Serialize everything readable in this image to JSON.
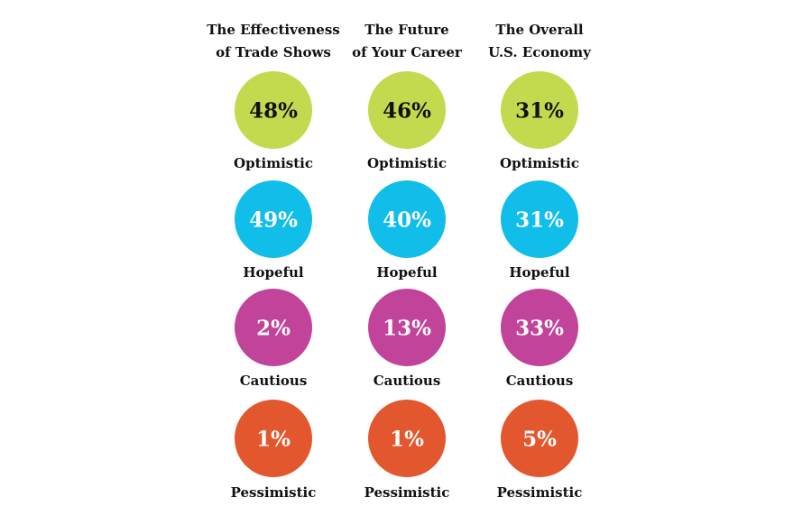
{
  "colors": {
    "optimistic": "#c3d94e",
    "hopeful": "#11bde9",
    "cautious": "#c1449a",
    "pessimistic": "#e2572d",
    "value_text_on_optimistic": "#111111",
    "value_text_on_others": "#ffffff"
  },
  "chart_data": {
    "type": "table",
    "title": "",
    "columns": [
      {
        "title_lines": [
          "The Effectiveness",
          "of Trade Shows"
        ]
      },
      {
        "title_lines": [
          "The Future",
          "of Your Career"
        ]
      },
      {
        "title_lines": [
          "The Overall",
          "U.S. Economy"
        ]
      }
    ],
    "categories": [
      "Optimistic",
      "Hopeful",
      "Cautious",
      "Pessimistic"
    ],
    "category_keys": [
      "optimistic",
      "hopeful",
      "cautious",
      "pessimistic"
    ],
    "values": [
      [
        48,
        49,
        2,
        1
      ],
      [
        46,
        40,
        13,
        1
      ],
      [
        31,
        31,
        33,
        5
      ]
    ],
    "value_suffix": "%"
  }
}
